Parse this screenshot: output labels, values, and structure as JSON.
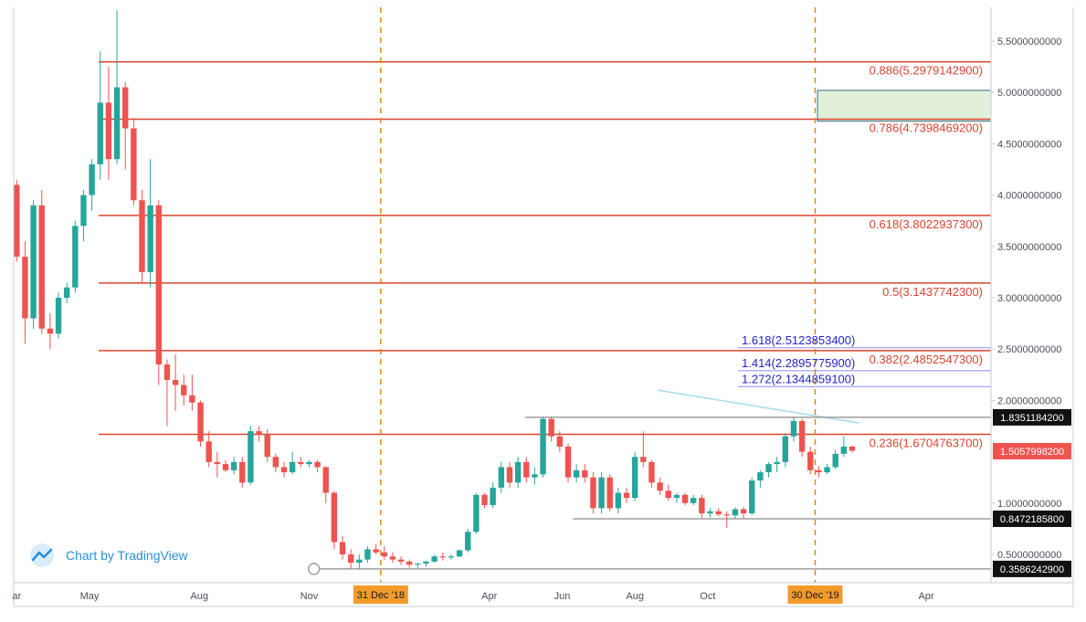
{
  "colors": {
    "up": "#26a69a",
    "down": "#ef5350",
    "fib_line": "#d9442f",
    "ext_line": "#8c8ce6",
    "vline": "#e08a12",
    "range_line": "#9e9e9e",
    "trend_line": "#a3dce5",
    "zone_fill": "#e2f0d9",
    "zone_stroke": "#2e6f86",
    "price_tag_bg": "#ef5350",
    "level_tag_bg": "#111111",
    "date_tag_bg": "#f29b2b"
  },
  "watermark": {
    "text": "Chart by TradingView",
    "icon": "tradingview-cloud-icon"
  },
  "chart_data": {
    "type": "candlestick",
    "title": "",
    "interval": "weekly",
    "x_range": [
      "2018-03-01",
      "2020-06-15"
    ],
    "ylim": [
      0.3,
      5.85
    ],
    "grid": false,
    "y_ticks": [
      "5.5000000000",
      "5.0000000000",
      "4.5000000000",
      "4.0000000000",
      "3.5000000000",
      "3.0000000000",
      "2.5000000000",
      "2.0000000000",
      "1.5000000000",
      "1.0000000000",
      "0.5000000000"
    ],
    "y_tick_values": [
      5.5,
      5.0,
      4.5,
      4.0,
      3.5,
      3.0,
      2.5,
      2.0,
      1.5,
      1.0,
      0.5
    ],
    "x_ticks": [
      {
        "label": "ar",
        "date": "2018-03-01"
      },
      {
        "label": "May",
        "date": "2018-05-01"
      },
      {
        "label": "Aug",
        "date": "2018-08-01"
      },
      {
        "label": "Nov",
        "date": "2018-11-01"
      },
      {
        "label": "Apr",
        "date": "2019-04-01"
      },
      {
        "label": "Jun",
        "date": "2019-06-01"
      },
      {
        "label": "Aug",
        "date": "2019-08-01"
      },
      {
        "label": "Oct",
        "date": "2019-10-01"
      },
      {
        "label": "Apr",
        "date": "2020-04-01"
      }
    ],
    "markers": [
      {
        "label": "31 Dec '18",
        "date": "2018-12-31"
      },
      {
        "label": "30 Dec '19",
        "date": "2019-12-30"
      }
    ],
    "fib_levels": [
      {
        "label": "0.886(5.2979142900)",
        "value": 5.29791429
      },
      {
        "label": "0.786(4.7398469200)",
        "value": 4.73984692
      },
      {
        "label": "0.618(3.8022937300)",
        "value": 3.80229373
      },
      {
        "label": "0.5(3.1437742300)",
        "value": 3.14377423
      },
      {
        "label": "0.382(2.4852547300)",
        "value": 2.48525473
      },
      {
        "label": "0.236(1.6704763700)",
        "value": 1.67047637
      }
    ],
    "extension_levels": [
      {
        "label": "1.618(2.5123853400)",
        "value": 2.51238534
      },
      {
        "label": "1.414(2.2895775900)",
        "value": 2.28957759
      },
      {
        "label": "1.272(2.1344859100)",
        "value": 2.13448591
      }
    ],
    "price_tags": [
      {
        "label": "1.8351184200",
        "value": 1.83511842,
        "kind": "level"
      },
      {
        "label": "1.5057998200",
        "value": 1.50579982,
        "kind": "last"
      },
      {
        "label": "0.8472185800",
        "value": 0.84721858,
        "kind": "level"
      },
      {
        "label": "0.3586242900",
        "value": 0.35862429,
        "kind": "level"
      }
    ],
    "range_lines": [
      {
        "value": 1.83511842,
        "from": "2019-05-01",
        "to": "2020-06-15"
      },
      {
        "value": 0.84721858,
        "from": "2019-06-10",
        "to": "2020-06-15"
      },
      {
        "value": 0.35862429,
        "from": "2018-11-05",
        "to": "2020-06-15"
      }
    ],
    "target_zone": {
      "from": "2020-01-01",
      "to": "2020-06-15",
      "low": 4.72,
      "high": 5.02
    },
    "trend_line": {
      "from": [
        "2019-08-20",
        2.1
      ],
      "to": [
        "2020-02-05",
        1.78
      ]
    },
    "candles": [
      {
        "d": "2018-03-01",
        "o": 4.1,
        "h": 4.15,
        "l": 3.35,
        "c": 3.4
      },
      {
        "d": "2018-03-08",
        "o": 3.4,
        "h": 3.55,
        "l": 2.55,
        "c": 2.8
      },
      {
        "d": "2018-03-15",
        "o": 2.8,
        "h": 3.95,
        "l": 2.7,
        "c": 3.9
      },
      {
        "d": "2018-03-22",
        "o": 3.9,
        "h": 4.05,
        "l": 2.65,
        "c": 2.7
      },
      {
        "d": "2018-03-29",
        "o": 2.7,
        "h": 2.85,
        "l": 2.5,
        "c": 2.65
      },
      {
        "d": "2018-04-05",
        "o": 2.65,
        "h": 3.05,
        "l": 2.6,
        "c": 3.0
      },
      {
        "d": "2018-04-12",
        "o": 3.0,
        "h": 3.15,
        "l": 2.95,
        "c": 3.1
      },
      {
        "d": "2018-04-19",
        "o": 3.1,
        "h": 3.75,
        "l": 3.05,
        "c": 3.7
      },
      {
        "d": "2018-04-26",
        "o": 3.7,
        "h": 4.05,
        "l": 3.55,
        "c": 4.0
      },
      {
        "d": "2018-05-03",
        "o": 4.0,
        "h": 4.35,
        "l": 3.85,
        "c": 4.3
      },
      {
        "d": "2018-05-10",
        "o": 4.3,
        "h": 5.4,
        "l": 4.15,
        "c": 4.9
      },
      {
        "d": "2018-05-17",
        "o": 4.9,
        "h": 5.25,
        "l": 4.15,
        "c": 4.35
      },
      {
        "d": "2018-05-24",
        "o": 4.35,
        "h": 5.8,
        "l": 4.3,
        "c": 5.05
      },
      {
        "d": "2018-05-31",
        "o": 5.05,
        "h": 5.1,
        "l": 4.25,
        "c": 4.65
      },
      {
        "d": "2018-06-07",
        "o": 4.65,
        "h": 4.75,
        "l": 3.9,
        "c": 3.95
      },
      {
        "d": "2018-06-14",
        "o": 3.95,
        "h": 4.05,
        "l": 3.15,
        "c": 3.25
      },
      {
        "d": "2018-06-21",
        "o": 3.25,
        "h": 4.35,
        "l": 3.1,
        "c": 3.9
      },
      {
        "d": "2018-06-28",
        "o": 3.9,
        "h": 3.95,
        "l": 2.15,
        "c": 2.35
      },
      {
        "d": "2018-07-05",
        "o": 2.35,
        "h": 2.4,
        "l": 1.75,
        "c": 2.2
      },
      {
        "d": "2018-07-12",
        "o": 2.2,
        "h": 2.45,
        "l": 1.9,
        "c": 2.15
      },
      {
        "d": "2018-07-19",
        "o": 2.15,
        "h": 2.25,
        "l": 1.95,
        "c": 2.05
      },
      {
        "d": "2018-07-26",
        "o": 2.05,
        "h": 2.25,
        "l": 1.9,
        "c": 1.98
      },
      {
        "d": "2018-08-02",
        "o": 1.98,
        "h": 2.0,
        "l": 1.55,
        "c": 1.6
      },
      {
        "d": "2018-08-09",
        "o": 1.6,
        "h": 1.7,
        "l": 1.35,
        "c": 1.4
      },
      {
        "d": "2018-08-16",
        "o": 1.4,
        "h": 1.5,
        "l": 1.25,
        "c": 1.38
      },
      {
        "d": "2018-08-23",
        "o": 1.38,
        "h": 1.42,
        "l": 1.3,
        "c": 1.32
      },
      {
        "d": "2018-08-30",
        "o": 1.32,
        "h": 1.45,
        "l": 1.28,
        "c": 1.4
      },
      {
        "d": "2018-09-06",
        "o": 1.4,
        "h": 1.45,
        "l": 1.15,
        "c": 1.2
      },
      {
        "d": "2018-09-13",
        "o": 1.2,
        "h": 1.75,
        "l": 1.18,
        "c": 1.7
      },
      {
        "d": "2018-09-20",
        "o": 1.7,
        "h": 1.75,
        "l": 1.6,
        "c": 1.67
      },
      {
        "d": "2018-09-27",
        "o": 1.67,
        "h": 1.72,
        "l": 1.4,
        "c": 1.45
      },
      {
        "d": "2018-10-04",
        "o": 1.45,
        "h": 1.48,
        "l": 1.3,
        "c": 1.35
      },
      {
        "d": "2018-10-11",
        "o": 1.35,
        "h": 1.4,
        "l": 1.25,
        "c": 1.3
      },
      {
        "d": "2018-10-18",
        "o": 1.3,
        "h": 1.5,
        "l": 1.28,
        "c": 1.4
      },
      {
        "d": "2018-10-25",
        "o": 1.4,
        "h": 1.45,
        "l": 1.35,
        "c": 1.38
      },
      {
        "d": "2018-11-01",
        "o": 1.38,
        "h": 1.42,
        "l": 1.35,
        "c": 1.4
      },
      {
        "d": "2018-11-08",
        "o": 1.4,
        "h": 1.42,
        "l": 1.3,
        "c": 1.35
      },
      {
        "d": "2018-11-15",
        "o": 1.35,
        "h": 1.36,
        "l": 1.0,
        "c": 1.1
      },
      {
        "d": "2018-11-22",
        "o": 1.1,
        "h": 1.12,
        "l": 0.55,
        "c": 0.62
      },
      {
        "d": "2018-11-29",
        "o": 0.62,
        "h": 0.68,
        "l": 0.45,
        "c": 0.5
      },
      {
        "d": "2018-12-06",
        "o": 0.5,
        "h": 0.55,
        "l": 0.36,
        "c": 0.42
      },
      {
        "d": "2018-12-13",
        "o": 0.42,
        "h": 0.5,
        "l": 0.36,
        "c": 0.45
      },
      {
        "d": "2018-12-20",
        "o": 0.45,
        "h": 0.58,
        "l": 0.42,
        "c": 0.55
      },
      {
        "d": "2018-12-27",
        "o": 0.55,
        "h": 0.6,
        "l": 0.5,
        "c": 0.52
      },
      {
        "d": "2019-01-03",
        "o": 0.52,
        "h": 0.58,
        "l": 0.45,
        "c": 0.48
      },
      {
        "d": "2019-01-10",
        "o": 0.48,
        "h": 0.52,
        "l": 0.42,
        "c": 0.45
      },
      {
        "d": "2019-01-17",
        "o": 0.45,
        "h": 0.48,
        "l": 0.4,
        "c": 0.43
      },
      {
        "d": "2019-01-24",
        "o": 0.43,
        "h": 0.45,
        "l": 0.37,
        "c": 0.4
      },
      {
        "d": "2019-01-31",
        "o": 0.4,
        "h": 0.42,
        "l": 0.37,
        "c": 0.41
      },
      {
        "d": "2019-02-07",
        "o": 0.41,
        "h": 0.44,
        "l": 0.38,
        "c": 0.43
      },
      {
        "d": "2019-02-14",
        "o": 0.43,
        "h": 0.5,
        "l": 0.42,
        "c": 0.48
      },
      {
        "d": "2019-02-21",
        "o": 0.48,
        "h": 0.52,
        "l": 0.44,
        "c": 0.47
      },
      {
        "d": "2019-02-28",
        "o": 0.47,
        "h": 0.5,
        "l": 0.45,
        "c": 0.48
      },
      {
        "d": "2019-03-07",
        "o": 0.48,
        "h": 0.55,
        "l": 0.47,
        "c": 0.54
      },
      {
        "d": "2019-03-14",
        "o": 0.54,
        "h": 0.75,
        "l": 0.52,
        "c": 0.72
      },
      {
        "d": "2019-03-21",
        "o": 0.72,
        "h": 1.1,
        "l": 0.7,
        "c": 1.08
      },
      {
        "d": "2019-03-28",
        "o": 1.08,
        "h": 1.1,
        "l": 0.95,
        "c": 0.98
      },
      {
        "d": "2019-04-04",
        "o": 0.98,
        "h": 1.2,
        "l": 0.95,
        "c": 1.15
      },
      {
        "d": "2019-04-11",
        "o": 1.15,
        "h": 1.4,
        "l": 1.1,
        "c": 1.35
      },
      {
        "d": "2019-04-18",
        "o": 1.35,
        "h": 1.4,
        "l": 1.15,
        "c": 1.2
      },
      {
        "d": "2019-04-25",
        "o": 1.2,
        "h": 1.45,
        "l": 1.15,
        "c": 1.4
      },
      {
        "d": "2019-05-02",
        "o": 1.4,
        "h": 1.45,
        "l": 1.2,
        "c": 1.25
      },
      {
        "d": "2019-05-09",
        "o": 1.25,
        "h": 1.35,
        "l": 1.18,
        "c": 1.28
      },
      {
        "d": "2019-05-16",
        "o": 1.28,
        "h": 1.84,
        "l": 1.25,
        "c": 1.82
      },
      {
        "d": "2019-05-23",
        "o": 1.82,
        "h": 1.84,
        "l": 1.6,
        "c": 1.65
      },
      {
        "d": "2019-05-30",
        "o": 1.65,
        "h": 1.7,
        "l": 1.5,
        "c": 1.55
      },
      {
        "d": "2019-06-06",
        "o": 1.55,
        "h": 1.58,
        "l": 1.2,
        "c": 1.25
      },
      {
        "d": "2019-06-13",
        "o": 1.25,
        "h": 1.38,
        "l": 1.2,
        "c": 1.32
      },
      {
        "d": "2019-06-20",
        "o": 1.32,
        "h": 1.38,
        "l": 1.2,
        "c": 1.25
      },
      {
        "d": "2019-06-27",
        "o": 1.25,
        "h": 1.3,
        "l": 0.9,
        "c": 0.95
      },
      {
        "d": "2019-07-04",
        "o": 0.95,
        "h": 1.3,
        "l": 0.9,
        "c": 1.25
      },
      {
        "d": "2019-07-11",
        "o": 1.25,
        "h": 1.28,
        "l": 0.92,
        "c": 0.95
      },
      {
        "d": "2019-07-18",
        "o": 0.95,
        "h": 1.15,
        "l": 0.9,
        "c": 1.1
      },
      {
        "d": "2019-07-25",
        "o": 1.1,
        "h": 1.15,
        "l": 1.0,
        "c": 1.05
      },
      {
        "d": "2019-08-01",
        "o": 1.05,
        "h": 1.5,
        "l": 1.02,
        "c": 1.45
      },
      {
        "d": "2019-08-08",
        "o": 1.45,
        "h": 1.7,
        "l": 1.35,
        "c": 1.4
      },
      {
        "d": "2019-08-15",
        "o": 1.4,
        "h": 1.42,
        "l": 1.15,
        "c": 1.2
      },
      {
        "d": "2019-08-22",
        "o": 1.2,
        "h": 1.25,
        "l": 1.08,
        "c": 1.12
      },
      {
        "d": "2019-08-29",
        "o": 1.12,
        "h": 1.18,
        "l": 1.02,
        "c": 1.05
      },
      {
        "d": "2019-09-05",
        "o": 1.05,
        "h": 1.1,
        "l": 1.0,
        "c": 1.08
      },
      {
        "d": "2019-09-12",
        "o": 1.08,
        "h": 1.1,
        "l": 0.98,
        "c": 1.0
      },
      {
        "d": "2019-09-19",
        "o": 1.0,
        "h": 1.08,
        "l": 0.98,
        "c": 1.05
      },
      {
        "d": "2019-09-26",
        "o": 1.05,
        "h": 1.08,
        "l": 0.85,
        "c": 0.9
      },
      {
        "d": "2019-10-03",
        "o": 0.9,
        "h": 0.95,
        "l": 0.86,
        "c": 0.92
      },
      {
        "d": "2019-10-10",
        "o": 0.92,
        "h": 0.95,
        "l": 0.87,
        "c": 0.89
      },
      {
        "d": "2019-10-17",
        "o": 0.89,
        "h": 0.92,
        "l": 0.76,
        "c": 0.88
      },
      {
        "d": "2019-10-24",
        "o": 0.88,
        "h": 0.96,
        "l": 0.85,
        "c": 0.94
      },
      {
        "d": "2019-10-31",
        "o": 0.94,
        "h": 0.96,
        "l": 0.85,
        "c": 0.9
      },
      {
        "d": "2019-11-07",
        "o": 0.9,
        "h": 1.25,
        "l": 0.88,
        "c": 1.22
      },
      {
        "d": "2019-11-14",
        "o": 1.22,
        "h": 1.32,
        "l": 1.15,
        "c": 1.3
      },
      {
        "d": "2019-11-21",
        "o": 1.3,
        "h": 1.4,
        "l": 1.25,
        "c": 1.38
      },
      {
        "d": "2019-11-28",
        "o": 1.38,
        "h": 1.45,
        "l": 1.3,
        "c": 1.4
      },
      {
        "d": "2019-12-05",
        "o": 1.4,
        "h": 1.68,
        "l": 1.35,
        "c": 1.65
      },
      {
        "d": "2019-12-12",
        "o": 1.65,
        "h": 1.84,
        "l": 1.6,
        "c": 1.8
      },
      {
        "d": "2019-12-19",
        "o": 1.8,
        "h": 1.82,
        "l": 1.45,
        "c": 1.5
      },
      {
        "d": "2019-12-26",
        "o": 1.5,
        "h": 1.55,
        "l": 1.28,
        "c": 1.32
      },
      {
        "d": "2020-01-02",
        "o": 1.32,
        "h": 1.36,
        "l": 1.25,
        "c": 1.3
      },
      {
        "d": "2020-01-09",
        "o": 1.3,
        "h": 1.38,
        "l": 1.28,
        "c": 1.35
      },
      {
        "d": "2020-01-16",
        "o": 1.35,
        "h": 1.52,
        "l": 1.33,
        "c": 1.48
      },
      {
        "d": "2020-01-23",
        "o": 1.48,
        "h": 1.65,
        "l": 1.45,
        "c": 1.55
      },
      {
        "d": "2020-01-30",
        "o": 1.55,
        "h": 1.56,
        "l": 1.49,
        "c": 1.51
      }
    ]
  }
}
